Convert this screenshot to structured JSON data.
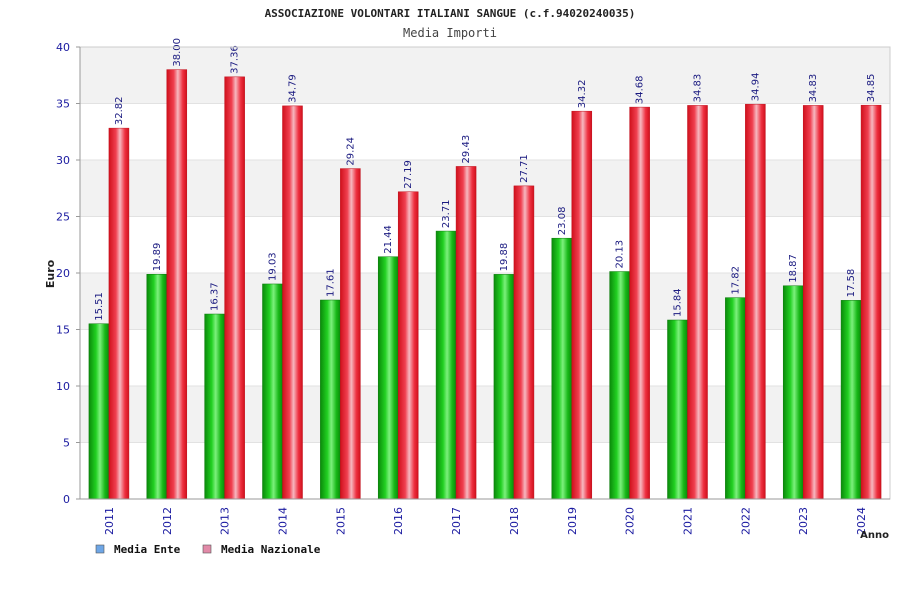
{
  "chart_data": {
    "type": "bar",
    "title": "ASSOCIAZIONE VOLONTARI ITALIANI SANGUE (c.f.94020240035)",
    "subtitle": "Media Importi",
    "xlabel": "Anno",
    "ylabel": "Euro",
    "ylim": [
      0,
      40
    ],
    "yticks": [
      "0",
      "5",
      "10",
      "15",
      "20",
      "25",
      "30",
      "35",
      "40"
    ],
    "grid": true,
    "legend_position": "bottom-left",
    "categories": [
      "2011",
      "2012",
      "2013",
      "2014",
      "2015",
      "2016",
      "2017",
      "2018",
      "2019",
      "2020",
      "2021",
      "2022",
      "2023",
      "2024"
    ],
    "series": [
      {
        "name": "Media Ente",
        "legend_color": "#6ea6e6",
        "bar_color": "#12b312",
        "values": [
          15.51,
          19.89,
          16.37,
          19.03,
          17.61,
          21.44,
          23.71,
          19.88,
          23.08,
          20.13,
          15.84,
          17.82,
          18.87,
          17.58
        ],
        "labels": [
          "15.51",
          "19.89",
          "16.37",
          "19.03",
          "17.61",
          "21.44",
          "23.71",
          "19.88",
          "23.08",
          "20.13",
          "15.84",
          "17.82",
          "18.87",
          "17.58"
        ]
      },
      {
        "name": "Media Nazionale",
        "legend_color": "#e28aa8",
        "bar_color": "#e81c2c",
        "values": [
          32.82,
          38.0,
          37.36,
          34.79,
          29.24,
          27.19,
          29.43,
          27.71,
          34.32,
          34.68,
          34.83,
          34.94,
          34.83,
          34.85
        ],
        "labels": [
          "32.82",
          "38.00",
          "37.36",
          "34.79",
          "29.24",
          "27.19",
          "29.43",
          "27.71",
          "34.32",
          "34.68",
          "34.83",
          "34.94",
          "34.83",
          "34.85"
        ]
      }
    ]
  }
}
